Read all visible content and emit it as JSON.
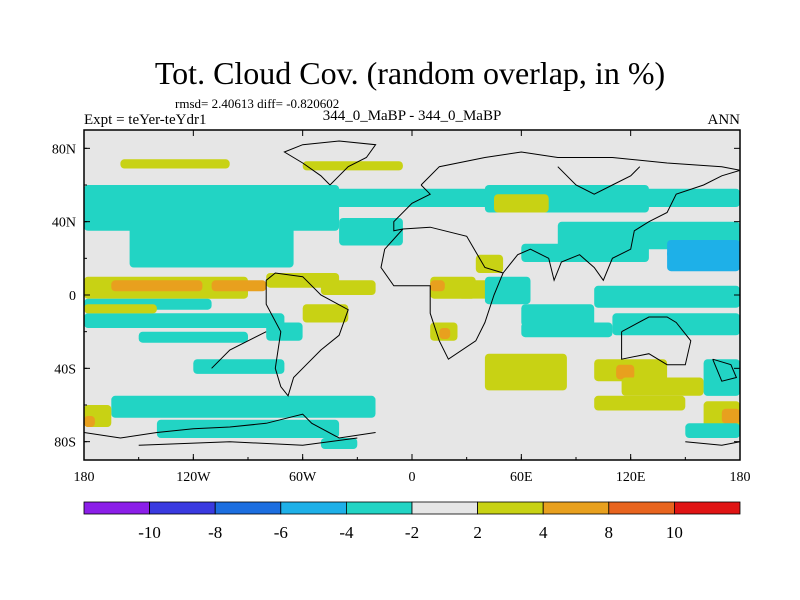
{
  "chart_data": {
    "type": "heatmap",
    "title": "Tot. Cloud Cov. (random overlap, in %)",
    "stats": "rmsd= 2.40613  diff= -0.820602",
    "experiment": "Expt = teYer-teYdr1",
    "comparison": "344_0_MaBP - 344_0_MaBP",
    "season": "ANN",
    "x_ticks": [
      {
        "value": -180,
        "label": "180"
      },
      {
        "value": -120,
        "label": "120W"
      },
      {
        "value": -60,
        "label": "60W"
      },
      {
        "value": 0,
        "label": "0"
      },
      {
        "value": 60,
        "label": "60E"
      },
      {
        "value": 120,
        "label": "120E"
      },
      {
        "value": 180,
        "label": "180"
      }
    ],
    "y_ticks": [
      {
        "value": 80,
        "label": "80N"
      },
      {
        "value": 40,
        "label": "40N"
      },
      {
        "value": 0,
        "label": "0"
      },
      {
        "value": -40,
        "label": "40S"
      },
      {
        "value": -80,
        "label": "80S"
      }
    ],
    "xlim": [
      -180,
      180
    ],
    "ylim": [
      -90,
      90
    ],
    "colorbar": {
      "levels": [
        -10,
        -8,
        -6,
        -4,
        -2,
        2,
        4,
        8,
        10
      ],
      "labels": [
        "-10",
        "-8",
        "-6",
        "-4",
        "-2",
        "2",
        "4",
        "8",
        "10"
      ],
      "colors": [
        "#8b1ee8",
        "#3a3ae0",
        "#1c6ee0",
        "#1eb0e8",
        "#22d4c4",
        "#e6e6e6",
        "#c8d214",
        "#e8a01e",
        "#e8641e",
        "#e01414"
      ]
    },
    "field_regions": [
      {
        "bin": 4,
        "lon": -180,
        "lat": 58,
        "w": 360,
        "h": 10
      },
      {
        "bin": 6,
        "lon": -160,
        "lat": 74,
        "w": 60,
        "h": 5
      },
      {
        "bin": 6,
        "lon": -60,
        "lat": 73,
        "w": 55,
        "h": 5
      },
      {
        "bin": 4,
        "lon": -180,
        "lat": 60,
        "w": 140,
        "h": 25
      },
      {
        "bin": 4,
        "lon": -155,
        "lat": 40,
        "w": 90,
        "h": 25
      },
      {
        "bin": 4,
        "lon": -40,
        "lat": 42,
        "w": 35,
        "h": 15
      },
      {
        "bin": 4,
        "lon": 40,
        "lat": 60,
        "w": 90,
        "h": 15
      },
      {
        "bin": 4,
        "lon": 80,
        "lat": 40,
        "w": 100,
        "h": 15
      },
      {
        "bin": 3,
        "lon": 140,
        "lat": 30,
        "w": 40,
        "h": 10
      },
      {
        "bin": 4,
        "lon": 60,
        "lat": 28,
        "w": 70,
        "h": 10
      },
      {
        "bin": 6,
        "lon": -180,
        "lat": 10,
        "w": 90,
        "h": 12
      },
      {
        "bin": 7,
        "lon": -165,
        "lat": 8,
        "w": 50,
        "h": 6
      },
      {
        "bin": 7,
        "lon": -110,
        "lat": 8,
        "w": 30,
        "h": 6
      },
      {
        "bin": 6,
        "lon": -80,
        "lat": 12,
        "w": 40,
        "h": 8
      },
      {
        "bin": 4,
        "lon": -180,
        "lat": -2,
        "w": 70,
        "h": 6
      },
      {
        "bin": 4,
        "lon": -180,
        "lat": -10,
        "w": 110,
        "h": 8
      },
      {
        "bin": 4,
        "lon": -150,
        "lat": -20,
        "w": 60,
        "h": 6
      },
      {
        "bin": 6,
        "lon": -180,
        "lat": -5,
        "w": 40,
        "h": 5
      },
      {
        "bin": 6,
        "lon": -50,
        "lat": 8,
        "w": 30,
        "h": 8
      },
      {
        "bin": 6,
        "lon": 10,
        "lat": 10,
        "w": 25,
        "h": 12
      },
      {
        "bin": 7,
        "lon": 10,
        "lat": 8,
        "w": 8,
        "h": 6
      },
      {
        "bin": 6,
        "lon": 35,
        "lat": 22,
        "w": 15,
        "h": 10
      },
      {
        "bin": 6,
        "lon": 45,
        "lat": 55,
        "w": 30,
        "h": 10
      },
      {
        "bin": 6,
        "lon": 25,
        "lat": 8,
        "w": 30,
        "h": 10
      },
      {
        "bin": 4,
        "lon": 40,
        "lat": 10,
        "w": 25,
        "h": 15
      },
      {
        "bin": 4,
        "lon": 60,
        "lat": -5,
        "w": 40,
        "h": 12
      },
      {
        "bin": 4,
        "lon": 100,
        "lat": 5,
        "w": 80,
        "h": 12
      },
      {
        "bin": 3,
        "lon": 140,
        "lat": 25,
        "w": 40,
        "h": 12
      },
      {
        "bin": 4,
        "lon": 110,
        "lat": -10,
        "w": 70,
        "h": 12
      },
      {
        "bin": 4,
        "lon": 60,
        "lat": -15,
        "w": 50,
        "h": 8
      },
      {
        "bin": 6,
        "lon": -60,
        "lat": -5,
        "w": 25,
        "h": 10
      },
      {
        "bin": 6,
        "lon": 10,
        "lat": -15,
        "w": 15,
        "h": 10
      },
      {
        "bin": 7,
        "lon": 15,
        "lat": -18,
        "w": 6,
        "h": 6
      },
      {
        "bin": 6,
        "lon": 40,
        "lat": -32,
        "w": 45,
        "h": 20
      },
      {
        "bin": 6,
        "lon": 100,
        "lat": -35,
        "w": 40,
        "h": 12
      },
      {
        "bin": 7,
        "lon": 112,
        "lat": -38,
        "w": 10,
        "h": 8
      },
      {
        "bin": 6,
        "lon": 115,
        "lat": -45,
        "w": 45,
        "h": 10
      },
      {
        "bin": 4,
        "lon": 160,
        "lat": -35,
        "w": 20,
        "h": 20
      },
      {
        "bin": 6,
        "lon": 160,
        "lat": -58,
        "w": 20,
        "h": 15
      },
      {
        "bin": 7,
        "lon": 170,
        "lat": -62,
        "w": 10,
        "h": 8
      },
      {
        "bin": 4,
        "lon": -80,
        "lat": -15,
        "w": 20,
        "h": 10
      },
      {
        "bin": 4,
        "lon": -165,
        "lat": -55,
        "w": 145,
        "h": 12
      },
      {
        "bin": 4,
        "lon": -120,
        "lat": -35,
        "w": 50,
        "h": 8
      },
      {
        "bin": 4,
        "lon": -140,
        "lat": -68,
        "w": 100,
        "h": 10
      },
      {
        "bin": 6,
        "lon": -180,
        "lat": -60,
        "w": 15,
        "h": 12
      },
      {
        "bin": 7,
        "lon": -180,
        "lat": -66,
        "w": 6,
        "h": 6
      },
      {
        "bin": 6,
        "lon": 100,
        "lat": -55,
        "w": 50,
        "h": 8
      },
      {
        "bin": 4,
        "lon": 150,
        "lat": -70,
        "w": 30,
        "h": 8
      },
      {
        "bin": 4,
        "lon": -50,
        "lat": -78,
        "w": 20,
        "h": 6
      }
    ],
    "coastlines": [
      [
        [
          -45,
          60
        ],
        [
          -40,
          65
        ],
        [
          -35,
          70
        ],
        [
          -25,
          75
        ],
        [
          -20,
          82
        ],
        [
          -40,
          84
        ],
        [
          -60,
          82
        ],
        [
          -70,
          78
        ],
        [
          -60,
          72
        ],
        [
          -50,
          65
        ],
        [
          -45,
          60
        ]
      ],
      [
        [
          5,
          60
        ],
        [
          15,
          70
        ],
        [
          40,
          75
        ],
        [
          60,
          78
        ],
        [
          80,
          75
        ],
        [
          110,
          75
        ],
        [
          140,
          72
        ],
        [
          170,
          70
        ],
        [
          180,
          68
        ]
      ],
      [
        [
          5,
          60
        ],
        [
          10,
          55
        ],
        [
          0,
          50
        ],
        [
          -10,
          40
        ],
        [
          -10,
          35
        ],
        [
          -5,
          36
        ],
        [
          10,
          37
        ],
        [
          30,
          32
        ],
        [
          40,
          15
        ],
        [
          50,
          12
        ],
        [
          45,
          0
        ],
        [
          40,
          -15
        ],
        [
          35,
          -25
        ],
        [
          20,
          -35
        ],
        [
          15,
          -25
        ],
        [
          10,
          -10
        ],
        [
          10,
          5
        ],
        [
          -10,
          5
        ],
        [
          -17,
          15
        ],
        [
          -15,
          25
        ],
        [
          -5,
          36
        ]
      ],
      [
        [
          50,
          12
        ],
        [
          58,
          22
        ],
        [
          65,
          25
        ],
        [
          75,
          20
        ],
        [
          78,
          8
        ],
        [
          82,
          18
        ],
        [
          92,
          22
        ],
        [
          100,
          15
        ],
        [
          105,
          8
        ],
        [
          110,
          20
        ],
        [
          120,
          25
        ],
        [
          122,
          35
        ],
        [
          130,
          40
        ],
        [
          140,
          45
        ],
        [
          145,
          55
        ],
        [
          160,
          60
        ],
        [
          170,
          65
        ],
        [
          180,
          68
        ]
      ],
      [
        [
          -80,
          8
        ],
        [
          -75,
          12
        ],
        [
          -60,
          10
        ],
        [
          -50,
          0
        ],
        [
          -35,
          -8
        ],
        [
          -40,
          -22
        ],
        [
          -50,
          -30
        ],
        [
          -58,
          -38
        ],
        [
          -65,
          -45
        ],
        [
          -68,
          -55
        ],
        [
          -72,
          -50
        ],
        [
          -75,
          -40
        ],
        [
          -72,
          -20
        ],
        [
          -80,
          -5
        ],
        [
          -80,
          8
        ]
      ],
      [
        [
          -180,
          -75
        ],
        [
          -160,
          -78
        ],
        [
          -140,
          -75
        ],
        [
          -120,
          -73
        ],
        [
          -100,
          -72
        ],
        [
          -80,
          -70
        ],
        [
          -60,
          -65
        ],
        [
          -55,
          -70
        ],
        [
          -40,
          -78
        ],
        [
          -20,
          -75
        ]
      ],
      [
        [
          -80,
          -20
        ],
        [
          -100,
          -30
        ],
        [
          -110,
          -40
        ]
      ],
      [
        [
          115,
          -20
        ],
        [
          130,
          -12
        ],
        [
          140,
          -12
        ],
        [
          145,
          -15
        ],
        [
          153,
          -25
        ],
        [
          150,
          -38
        ],
        [
          140,
          -38
        ],
        [
          130,
          -32
        ],
        [
          115,
          -35
        ],
        [
          115,
          -20
        ]
      ],
      [
        [
          165,
          -35
        ],
        [
          175,
          -38
        ],
        [
          178,
          -45
        ],
        [
          170,
          -47
        ],
        [
          165,
          -35
        ]
      ],
      [
        [
          -150,
          -82
        ],
        [
          -100,
          -80
        ],
        [
          -60,
          -82
        ],
        [
          -30,
          -78
        ]
      ],
      [
        [
          150,
          -80
        ],
        [
          170,
          -82
        ],
        [
          180,
          -80
        ]
      ],
      [
        [
          80,
          70
        ],
        [
          90,
          60
        ],
        [
          100,
          55
        ],
        [
          110,
          60
        ],
        [
          120,
          65
        ],
        [
          125,
          70
        ]
      ]
    ]
  }
}
